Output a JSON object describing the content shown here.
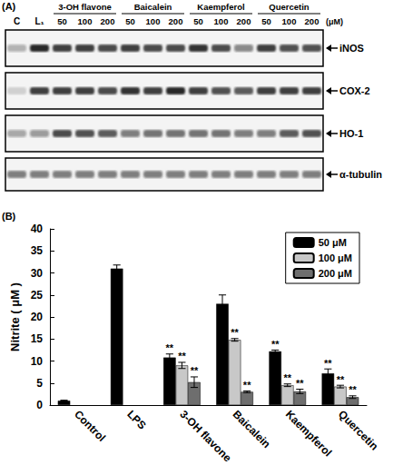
{
  "blot": {
    "panel": "(A)",
    "lane_labels": [
      "C",
      "L₁"
    ],
    "groups": [
      {
        "label": "3-OH flavone",
        "doses": [
          50,
          100,
          200
        ]
      },
      {
        "label": "Baicalein",
        "doses": [
          50,
          100,
          200
        ]
      },
      {
        "label": "Kaempferol",
        "doses": [
          50,
          100,
          200
        ]
      },
      {
        "label": "Quercetin",
        "doses": [
          50,
          100,
          200
        ]
      }
    ],
    "dose_unit": "(μM)",
    "rows": [
      {
        "label": "iNOS",
        "bands": [
          0.3,
          0.95,
          0.85,
          0.85,
          0.8,
          0.85,
          0.8,
          0.8,
          0.9,
          0.8,
          0.5,
          0.85,
          0.75,
          0.75
        ]
      },
      {
        "label": "COX-2",
        "bands": [
          0.15,
          0.85,
          0.85,
          0.85,
          0.8,
          0.9,
          0.85,
          0.95,
          0.85,
          0.75,
          0.7,
          0.85,
          0.85,
          0.85
        ]
      },
      {
        "label": "HO-1",
        "bands": [
          0.35,
          0.4,
          0.8,
          0.75,
          0.7,
          0.55,
          0.6,
          0.6,
          0.6,
          0.6,
          0.55,
          0.55,
          0.7,
          0.75
        ]
      },
      {
        "label": "α-tubulin",
        "bands": [
          0.55,
          0.55,
          0.55,
          0.55,
          0.55,
          0.55,
          0.55,
          0.55,
          0.55,
          0.55,
          0.55,
          0.55,
          0.55,
          0.55
        ]
      }
    ]
  },
  "chart_data": {
    "type": "bar",
    "panel": "(B)",
    "ylabel": "Nitrite ( μM )",
    "categories": [
      "Control",
      "LPS",
      "3-OH flavone",
      "Baicalein",
      "Kaempferol",
      "Quercetin"
    ],
    "series": [
      {
        "name": "50 μM",
        "color": "#000000",
        "values": [
          1,
          31,
          10.8,
          23,
          12.2,
          7.2
        ],
        "errors": [
          0.1,
          0.8,
          0.8,
          2,
          0.3,
          1
        ],
        "annotations": [
          null,
          null,
          "**",
          null,
          "**",
          "**"
        ]
      },
      {
        "name": "100 μM",
        "color": "#c8c8c8",
        "values": [
          null,
          null,
          9,
          14.8,
          4.5,
          4.2
        ],
        "errors": [
          null,
          null,
          0.7,
          0.3,
          0.3,
          0.3
        ],
        "annotations": [
          null,
          null,
          "**",
          "**",
          "**",
          "**"
        ]
      },
      {
        "name": "200 μM",
        "color": "#6e6e6e",
        "values": [
          null,
          null,
          5.2,
          3,
          3.1,
          1.8
        ],
        "errors": [
          null,
          null,
          1.2,
          0.2,
          0.5,
          0.3
        ],
        "annotations": [
          null,
          null,
          "**",
          "**",
          "**",
          "**"
        ]
      }
    ],
    "ylim": [
      0,
      40
    ],
    "yticks": [
      0,
      5,
      10,
      15,
      20,
      25,
      30,
      35,
      40
    ],
    "legend": "upper right",
    "grid": false
  }
}
